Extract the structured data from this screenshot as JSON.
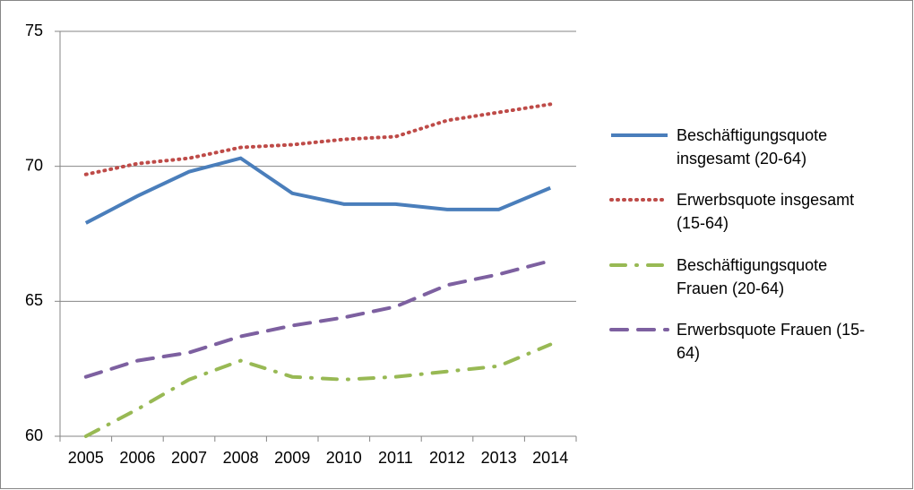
{
  "chart_data": {
    "type": "line",
    "categories": [
      "2005",
      "2006",
      "2007",
      "2008",
      "2009",
      "2010",
      "2011",
      "2012",
      "2013",
      "2014"
    ],
    "ylim": [
      60,
      75
    ],
    "yticks": [
      60,
      65,
      70,
      75
    ],
    "grid": true,
    "legend": "right",
    "series": [
      {
        "name": "Beschäftigungsquote insgesamt (20-64)",
        "color": "#4a7ebb",
        "style": "solid",
        "values": [
          67.9,
          68.9,
          69.8,
          70.3,
          69.0,
          68.6,
          68.6,
          68.4,
          68.4,
          69.2
        ]
      },
      {
        "name": "Erwerbsquote insgesamt (15-64)",
        "color": "#be4b48",
        "style": "dotted",
        "values": [
          69.7,
          70.1,
          70.3,
          70.7,
          70.8,
          71.0,
          71.1,
          71.7,
          72.0,
          72.3
        ]
      },
      {
        "name": "Beschäftigungsquote Frauen (20-64)",
        "color": "#98b954",
        "style": "dashdot",
        "values": [
          60.0,
          61.0,
          62.1,
          62.8,
          62.2,
          62.1,
          62.2,
          62.4,
          62.6,
          63.4
        ]
      },
      {
        "name": "Erwerbsquote Frauen (15-64)",
        "color": "#7d60a0",
        "style": "dashed",
        "values": [
          62.2,
          62.8,
          63.1,
          63.7,
          64.1,
          64.4,
          64.8,
          65.6,
          66.0,
          66.5
        ]
      }
    ]
  }
}
